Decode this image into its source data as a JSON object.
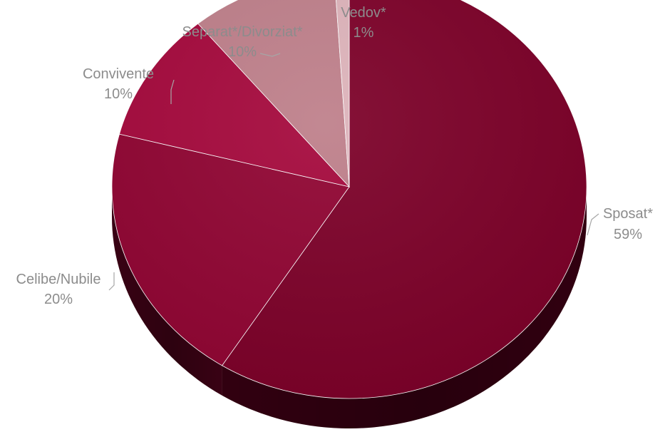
{
  "chart_data": {
    "type": "pie",
    "style": "3d",
    "slices": [
      {
        "name": "Sposat*",
        "value": 59,
        "label": "59%",
        "color": "#7c0028"
      },
      {
        "name": "Celibe/Nubile",
        "value": 20,
        "label": "20%",
        "color": "#900432"
      },
      {
        "name": "Convivente",
        "value": 10,
        "label": "10%",
        "color": "#a5083c"
      },
      {
        "name": "Separat*/Divorziat*",
        "value": 10,
        "label": "10%",
        "color": "#be7f8a"
      },
      {
        "name": "Vedov*",
        "value": 1,
        "label": "1%",
        "color": "#ddb3ba"
      }
    ],
    "legend": "none"
  }
}
